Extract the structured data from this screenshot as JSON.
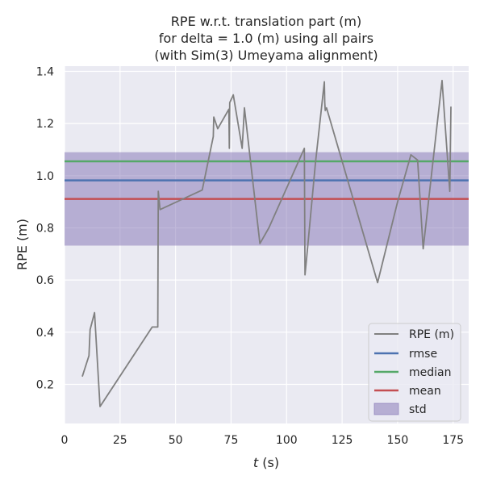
{
  "chart_data": {
    "type": "line",
    "title": [
      "RPE w.r.t. translation part (m)",
      "for delta = 1.0 (m) using all pairs",
      "(with Sim(3) Umeyama alignment)"
    ],
    "xlabel_var": "t",
    "xlabel_unit": " (s)",
    "ylabel": "RPE (m)",
    "xlim": [
      0,
      182
    ],
    "ylim": [
      0.05,
      1.42
    ],
    "xticks": [
      0,
      25,
      50,
      75,
      100,
      125,
      150,
      175
    ],
    "yticks": [
      0.2,
      0.4,
      0.6,
      0.8,
      1.0,
      1.2,
      1.4
    ],
    "ytick_labels": [
      "0.2",
      "0.4",
      "0.6",
      "0.8",
      "1.0",
      "1.2",
      "1.4"
    ],
    "grid": true,
    "legend_position": "lower-right",
    "series": [
      {
        "name": "RPE (m)",
        "color": "#808080",
        "x": [
          8,
          11,
          11.5,
          13.5,
          16,
          39.5,
          42,
          42.2,
          43,
          62,
          67,
          67.2,
          69,
          74,
          74.2,
          74.4,
          76,
          80,
          81,
          88,
          92,
          108,
          108.3,
          109,
          113,
          117,
          117.2,
          117.4,
          118,
          141,
          150,
          156,
          159,
          161.5,
          170,
          173.5,
          174
        ],
        "y": [
          0.23,
          0.31,
          0.41,
          0.475,
          0.115,
          0.42,
          0.42,
          0.94,
          0.87,
          0.945,
          1.15,
          1.225,
          1.18,
          1.255,
          1.105,
          1.28,
          1.31,
          1.105,
          1.26,
          0.74,
          0.8,
          1.105,
          0.62,
          0.68,
          1.05,
          1.36,
          1.28,
          1.25,
          1.26,
          0.59,
          0.9,
          1.08,
          1.06,
          0.72,
          1.365,
          0.94,
          1.265
        ]
      }
    ],
    "stats": {
      "rmse": 0.982,
      "median": 1.055,
      "mean": 0.911,
      "std_low": 0.732,
      "std_high": 1.09
    },
    "legend": [
      {
        "label": "RPE (m)",
        "kind": "line",
        "color": "#808080"
      },
      {
        "label": "rmse",
        "kind": "line",
        "color": "#4c72b0"
      },
      {
        "label": "median",
        "kind": "line",
        "color": "#55a868"
      },
      {
        "label": "mean",
        "kind": "line",
        "color": "#c44e52"
      },
      {
        "label": "std",
        "kind": "patch",
        "color": "#8172b3"
      }
    ],
    "colors": {
      "plot_bg": "#eaeaf2",
      "grid": "#ffffff",
      "rmse": "#4c72b0",
      "median": "#55a868",
      "mean": "#c44e52",
      "std": "#8172b3",
      "rpe": "#808080"
    }
  }
}
